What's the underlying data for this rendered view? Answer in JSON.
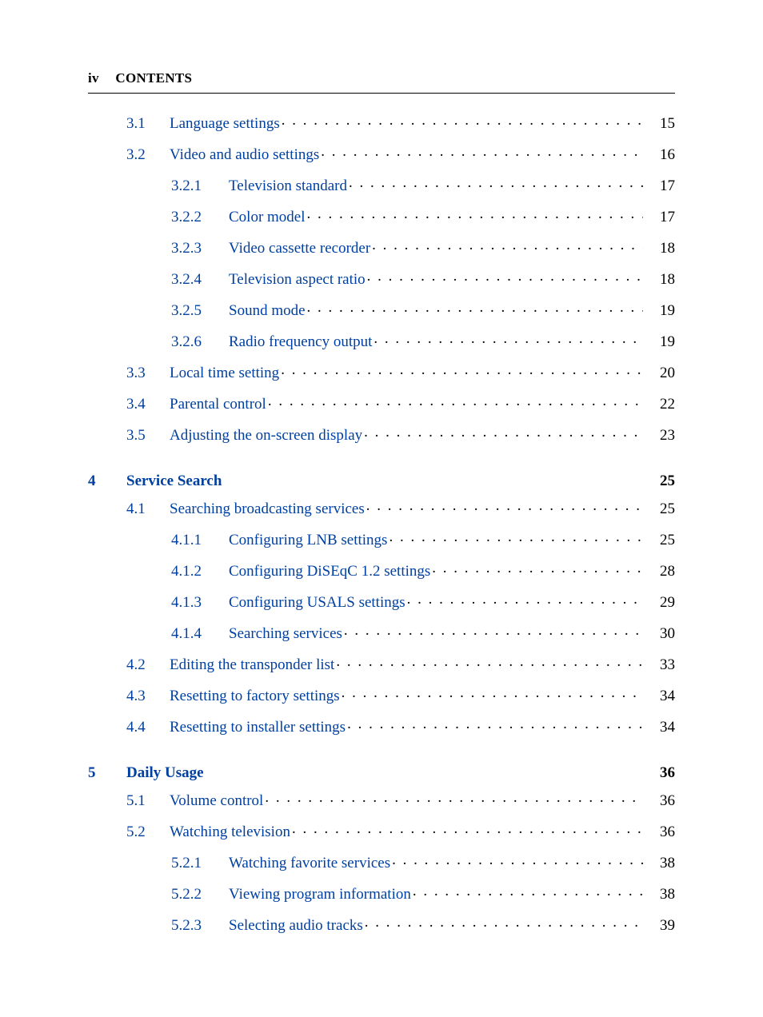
{
  "colors": {
    "link": "#0040a0",
    "text": "#000000",
    "background": "#ffffff",
    "rule": "#000000"
  },
  "typography": {
    "body_fontsize_pt": 14,
    "header_fontsize_pt": 13,
    "font_family": "Palatino / Book Antiqua serif"
  },
  "header": {
    "roman": "iv",
    "label": "CONTENTS"
  },
  "toc": [
    {
      "kind": "sec",
      "num": "3.1",
      "title": "Language settings",
      "page": "15"
    },
    {
      "kind": "sec",
      "num": "3.2",
      "title": "Video and audio settings",
      "page": "16"
    },
    {
      "kind": "sub",
      "num": "3.2.1",
      "title": "Television standard",
      "page": "17"
    },
    {
      "kind": "sub",
      "num": "3.2.2",
      "title": "Color model",
      "page": "17"
    },
    {
      "kind": "sub",
      "num": "3.2.3",
      "title": "Video cassette recorder",
      "page": "18"
    },
    {
      "kind": "sub",
      "num": "3.2.4",
      "title": "Television aspect ratio",
      "page": "18"
    },
    {
      "kind": "sub",
      "num": "3.2.5",
      "title": "Sound mode",
      "page": "19"
    },
    {
      "kind": "sub",
      "num": "3.2.6",
      "title": "Radio frequency output",
      "page": "19"
    },
    {
      "kind": "sec",
      "num": "3.3",
      "title": "Local time setting",
      "page": "20"
    },
    {
      "kind": "sec",
      "num": "3.4",
      "title": "Parental control",
      "page": "22"
    },
    {
      "kind": "sec",
      "num": "3.5",
      "title": "Adjusting the on-screen display",
      "page": "23"
    },
    {
      "kind": "chap",
      "num": "4",
      "title": "Service Search",
      "page": "25"
    },
    {
      "kind": "sec",
      "num": "4.1",
      "title": "Searching broadcasting services",
      "page": "25"
    },
    {
      "kind": "sub",
      "num": "4.1.1",
      "title": "Configuring LNB settings",
      "page": "25"
    },
    {
      "kind": "sub",
      "num": "4.1.2",
      "title": "Configuring DiSEqC 1.2 settings",
      "page": "28"
    },
    {
      "kind": "sub",
      "num": "4.1.3",
      "title": "Configuring USALS settings",
      "page": "29"
    },
    {
      "kind": "sub",
      "num": "4.1.4",
      "title": "Searching services",
      "page": "30"
    },
    {
      "kind": "sec",
      "num": "4.2",
      "title": "Editing the transponder list",
      "page": "33"
    },
    {
      "kind": "sec",
      "num": "4.3",
      "title": "Resetting to factory settings",
      "page": "34"
    },
    {
      "kind": "sec",
      "num": "4.4",
      "title": "Resetting to installer settings",
      "page": "34"
    },
    {
      "kind": "chap",
      "num": "5",
      "title": "Daily Usage",
      "page": "36"
    },
    {
      "kind": "sec",
      "num": "5.1",
      "title": "Volume control",
      "page": "36"
    },
    {
      "kind": "sec",
      "num": "5.2",
      "title": "Watching television",
      "page": "36"
    },
    {
      "kind": "sub",
      "num": "5.2.1",
      "title": "Watching favorite services",
      "page": "38"
    },
    {
      "kind": "sub",
      "num": "5.2.2",
      "title": "Viewing program information",
      "page": "38"
    },
    {
      "kind": "sub",
      "num": "5.2.3",
      "title": "Selecting audio tracks",
      "page": "39"
    }
  ]
}
